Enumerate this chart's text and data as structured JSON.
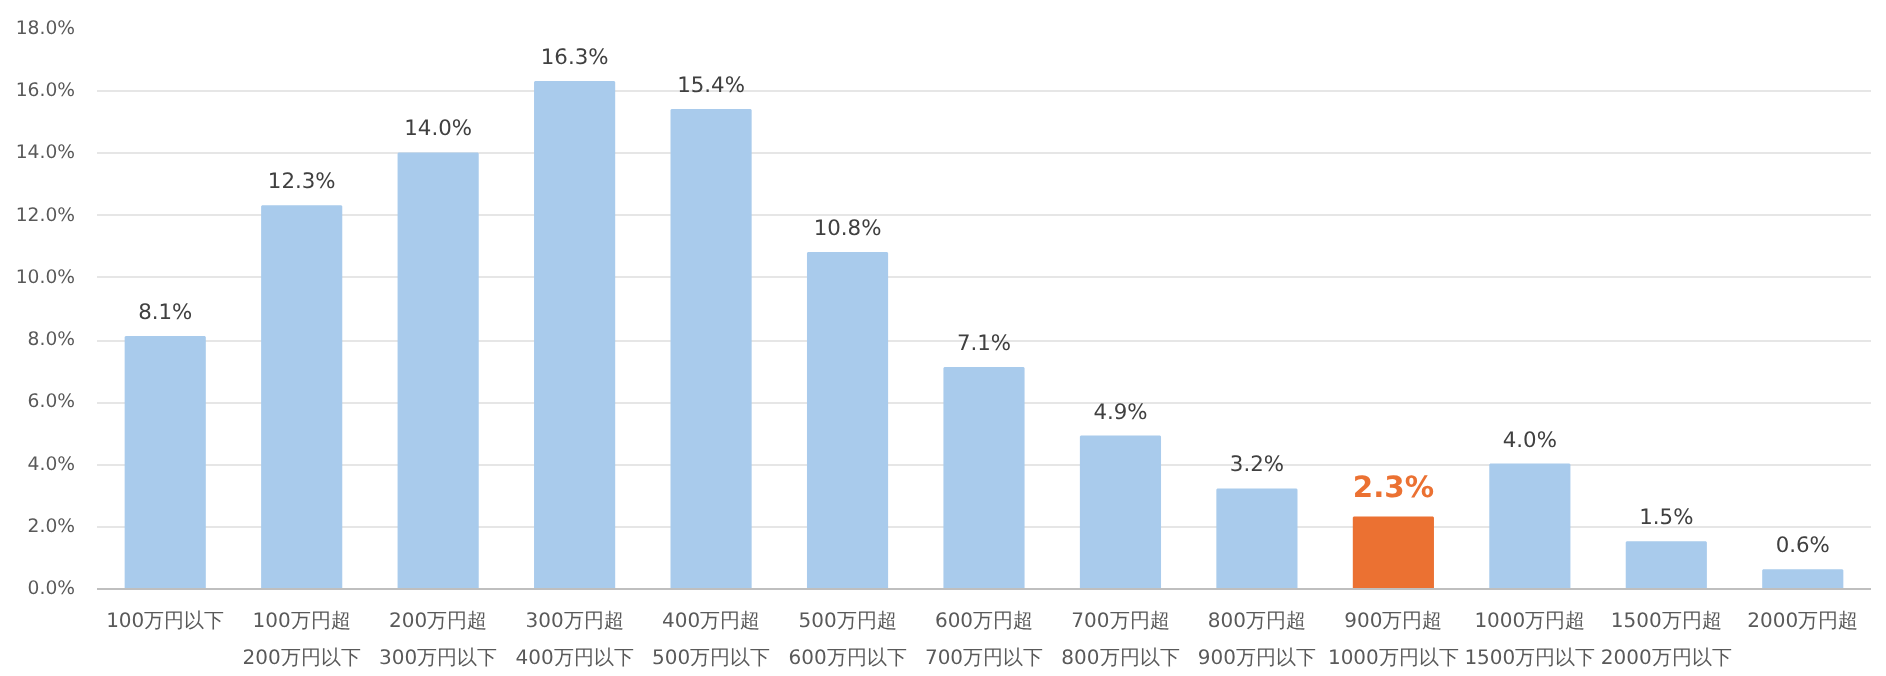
{
  "chart_data": {
    "type": "bar",
    "categories": [
      "100万円以下",
      "100万円超\n200万円以下",
      "200万円超\n300万円以下",
      "300万円超\n400万円以下",
      "400万円超\n500万円以下",
      "500万円超\n600万円以下",
      "600万円超\n700万円以下",
      "700万円超\n800万円以下",
      "800万円超\n900万円以下",
      "900万円超\n1000万円以下",
      "1000万円超\n1500万円以下",
      "1500万円超\n2000万円以下",
      "2000万円超"
    ],
    "values": [
      8.1,
      12.3,
      14.0,
      16.3,
      15.4,
      10.8,
      7.1,
      4.9,
      3.2,
      2.3,
      4.0,
      1.5,
      0.6
    ],
    "colors": [
      "#a9cbec",
      "#a9cbec",
      "#a9cbec",
      "#a9cbec",
      "#a9cbec",
      "#a9cbec",
      "#a9cbec",
      "#a9cbec",
      "#a9cbec",
      "#eb7132",
      "#a9cbec",
      "#a9cbec",
      "#a9cbec"
    ],
    "value_labels": [
      "8.1%",
      "12.3%",
      "14.0%",
      "16.3%",
      "15.4%",
      "10.8%",
      "7.1%",
      "4.9%",
      "3.2%",
      "2.3%",
      "4.0%",
      "1.5%",
      "0.6%"
    ],
    "ylim": [
      0,
      18
    ],
    "yticks": [
      {
        "value": 0,
        "label": "0.0%"
      },
      {
        "value": 2,
        "label": "2.0%"
      },
      {
        "value": 4,
        "label": "4.0%"
      },
      {
        "value": 6,
        "label": "6.0%"
      },
      {
        "value": 8,
        "label": "8.0%"
      },
      {
        "value": 10,
        "label": "10.0%"
      },
      {
        "value": 12,
        "label": "12.0%"
      },
      {
        "value": 14,
        "label": "14.0%"
      },
      {
        "value": 16,
        "label": "16.0%"
      },
      {
        "value": 18,
        "label": "18.0%"
      }
    ],
    "grid": "y"
  }
}
